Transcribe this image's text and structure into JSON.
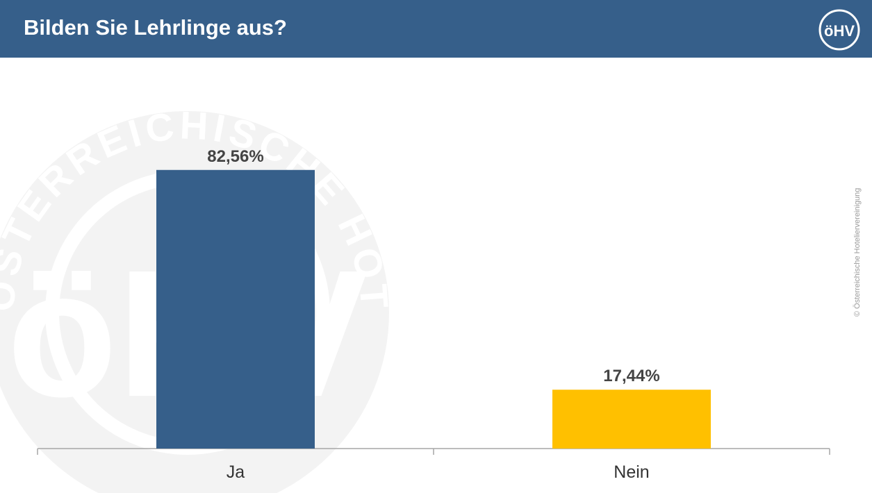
{
  "header": {
    "title": "Bilden Sie Lehrlinge aus?",
    "logo_text": "öHV",
    "background_color": "#365f8a"
  },
  "watermark": {
    "text": "ÖSTERREICHISCHE HOTELIERVEREINIGUNG"
  },
  "copyright": "© Österreichische Hotelier­vereinigung",
  "chart_data": {
    "type": "bar",
    "title": "Bilden Sie Lehrlinge aus?",
    "categories": [
      "Ja",
      "Nein"
    ],
    "values": [
      82.56,
      17.44
    ],
    "value_labels": [
      "82,56%",
      "17,44%"
    ],
    "colors": [
      "#365f8a",
      "#ffc000"
    ],
    "ylim": [
      0,
      100
    ],
    "grid": false,
    "xlabel": "",
    "ylabel": ""
  }
}
